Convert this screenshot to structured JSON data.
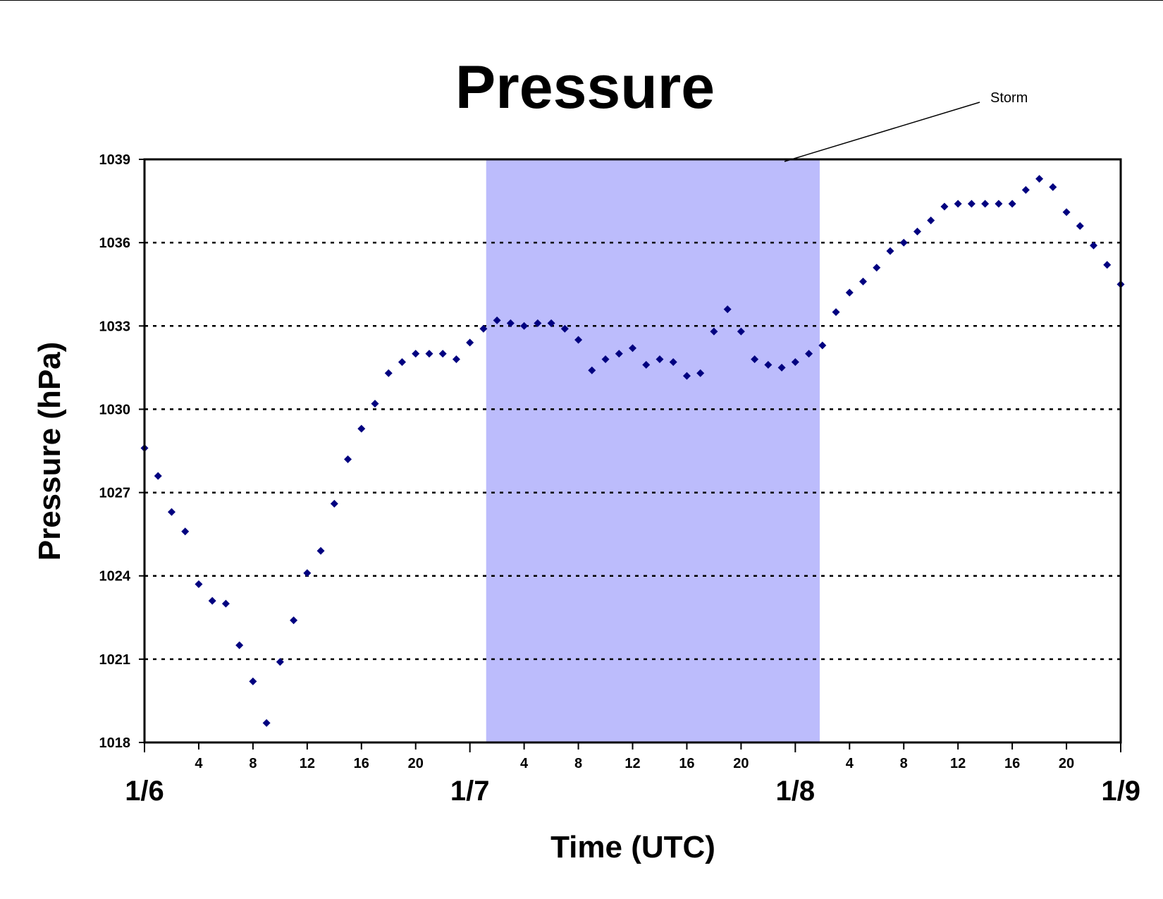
{
  "chart_data": {
    "type": "scatter",
    "title": "Pressure",
    "xlabel": "Time (UTC)",
    "ylabel": "Pressure (hPa)",
    "ylim": [
      1018,
      1039
    ],
    "yticks": [
      1018,
      1021,
      1024,
      1027,
      1030,
      1033,
      1036,
      1039
    ],
    "xlim_hours": [
      0,
      72
    ],
    "x_hour_ticks": [
      {
        "hour": 4,
        "label": "4"
      },
      {
        "hour": 8,
        "label": "8"
      },
      {
        "hour": 12,
        "label": "12"
      },
      {
        "hour": 16,
        "label": "16"
      },
      {
        "hour": 20,
        "label": "20"
      },
      {
        "hour": 28,
        "label": "4"
      },
      {
        "hour": 32,
        "label": "8"
      },
      {
        "hour": 36,
        "label": "12"
      },
      {
        "hour": 40,
        "label": "16"
      },
      {
        "hour": 44,
        "label": "20"
      },
      {
        "hour": 52,
        "label": "4"
      },
      {
        "hour": 56,
        "label": "8"
      },
      {
        "hour": 60,
        "label": "12"
      },
      {
        "hour": 64,
        "label": "16"
      },
      {
        "hour": 68,
        "label": "20"
      }
    ],
    "x_date_labels": [
      {
        "hour": 0,
        "label": "1/6"
      },
      {
        "hour": 24,
        "label": "1/7"
      },
      {
        "hour": 48,
        "label": "1/8"
      },
      {
        "hour": 72,
        "label": "1/9"
      }
    ],
    "grid": "horizontal dotted",
    "series": [
      {
        "color": "#000080",
        "marker": "diamond",
        "x": [
          0,
          1,
          2,
          3,
          4,
          5,
          6,
          7,
          8,
          9,
          10,
          11,
          12,
          13,
          14,
          15,
          16,
          17,
          18,
          19,
          20,
          21,
          22,
          23,
          24,
          25,
          26,
          27,
          28,
          29,
          30,
          31,
          32,
          33,
          34,
          35,
          36,
          37,
          38,
          39,
          40,
          41,
          42,
          43,
          44,
          45,
          46,
          47,
          48,
          49,
          50,
          51,
          52,
          53,
          54,
          55,
          56,
          57,
          58,
          59,
          60,
          61,
          62,
          63,
          64,
          65,
          66,
          67,
          68,
          69,
          70,
          71,
          72
        ],
        "y": [
          1028.6,
          1027.6,
          1026.3,
          1025.6,
          1023.7,
          1023.1,
          1023.0,
          1021.5,
          1020.2,
          1018.7,
          1020.9,
          1022.4,
          1024.1,
          1024.9,
          1026.6,
          1028.2,
          1029.3,
          1030.2,
          1031.3,
          1031.7,
          1032.0,
          1032.0,
          1032.0,
          1031.8,
          1032.4,
          1032.9,
          1033.2,
          1033.1,
          1033.0,
          1033.1,
          1033.1,
          1032.9,
          1032.5,
          1031.4,
          1031.8,
          1032.0,
          1032.2,
          1031.6,
          1031.8,
          1031.7,
          1031.2,
          1031.3,
          1032.8,
          1033.6,
          1032.8,
          1031.8,
          1031.6,
          1031.5,
          1031.7,
          1032.0,
          1032.3,
          1033.5,
          1034.2,
          1034.6,
          1035.1,
          1035.7,
          1036.0,
          1036.4,
          1036.8,
          1037.3,
          1037.4,
          1037.4,
          1037.4,
          1037.4,
          1037.4,
          1037.9,
          1038.3,
          1038.0,
          1037.1,
          1036.6,
          1035.9,
          1035.2,
          1034.5
        ]
      }
    ],
    "shaded_region": {
      "x_start": 25.2,
      "x_end": 49.8,
      "color": "#bcbcfc",
      "label": "Storm"
    },
    "annotation": {
      "text": "Storm"
    }
  }
}
